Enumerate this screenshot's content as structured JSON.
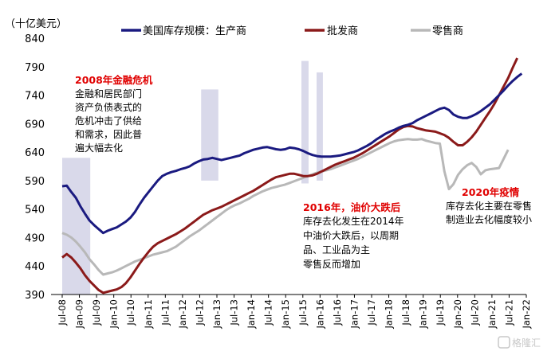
{
  "chart_data": {
    "type": "line",
    "unit_label": "（十亿美元）",
    "ylim": [
      390,
      840
    ],
    "yticks": [
      390,
      440,
      490,
      540,
      590,
      640,
      690,
      740,
      790,
      840
    ],
    "xticks": [
      "Jul-08",
      "Jan-09",
      "Jul-09",
      "Jan-10",
      "Jul-10",
      "Jan-11",
      "Jul-11",
      "Jan-12",
      "Jul-12",
      "Jan-13",
      "Jul-13",
      "Jan-14",
      "Jul-14",
      "Jan-15",
      "Jul-15",
      "Jan-16",
      "Jul-16",
      "Jan-17",
      "Jul-17",
      "Jan-18",
      "Jul-18",
      "Jan-19",
      "Jul-19",
      "Jan-20",
      "Jul-20",
      "Jan-21",
      "Jul-21",
      "Jan-22"
    ],
    "legend_position": "top",
    "series": [
      {
        "name": "美国库存规模：生产商",
        "color": "#1a1a80",
        "points": [
          [
            0,
            580
          ],
          [
            1,
            581
          ],
          [
            2,
            570
          ],
          [
            3,
            560
          ],
          [
            4,
            545
          ],
          [
            5,
            532
          ],
          [
            6,
            520
          ],
          [
            7,
            512
          ],
          [
            8,
            505
          ],
          [
            9,
            498
          ],
          [
            10,
            502
          ],
          [
            11,
            505
          ],
          [
            12,
            508
          ],
          [
            13,
            513
          ],
          [
            14,
            518
          ],
          [
            15,
            525
          ],
          [
            16,
            535
          ],
          [
            17,
            548
          ],
          [
            18,
            560
          ],
          [
            19,
            570
          ],
          [
            20,
            580
          ],
          [
            21,
            590
          ],
          [
            22,
            598
          ],
          [
            23,
            602
          ],
          [
            24,
            605
          ],
          [
            25,
            607
          ],
          [
            26,
            610
          ],
          [
            27,
            612
          ],
          [
            28,
            615
          ],
          [
            29,
            620
          ],
          [
            30,
            624
          ],
          [
            31,
            627
          ],
          [
            32,
            628
          ],
          [
            33,
            630
          ],
          [
            34,
            628
          ],
          [
            35,
            626
          ],
          [
            36,
            628
          ],
          [
            37,
            630
          ],
          [
            38,
            632
          ],
          [
            39,
            634
          ],
          [
            40,
            638
          ],
          [
            41,
            641
          ],
          [
            42,
            644
          ],
          [
            43,
            646
          ],
          [
            44,
            648
          ],
          [
            45,
            649
          ],
          [
            46,
            647
          ],
          [
            47,
            645
          ],
          [
            48,
            644
          ],
          [
            49,
            645
          ],
          [
            50,
            648
          ],
          [
            51,
            647
          ],
          [
            52,
            645
          ],
          [
            53,
            642
          ],
          [
            54,
            638
          ],
          [
            55,
            635
          ],
          [
            56,
            633
          ],
          [
            57,
            632
          ],
          [
            58,
            632
          ],
          [
            59,
            632
          ],
          [
            60,
            633
          ],
          [
            61,
            634
          ],
          [
            62,
            636
          ],
          [
            63,
            638
          ],
          [
            64,
            640
          ],
          [
            65,
            643
          ],
          [
            66,
            647
          ],
          [
            67,
            651
          ],
          [
            68,
            656
          ],
          [
            69,
            662
          ],
          [
            70,
            667
          ],
          [
            71,
            672
          ],
          [
            72,
            676
          ],
          [
            73,
            679
          ],
          [
            74,
            683
          ],
          [
            75,
            686
          ],
          [
            76,
            688
          ],
          [
            77,
            691
          ],
          [
            78,
            696
          ],
          [
            79,
            700
          ],
          [
            80,
            704
          ],
          [
            81,
            708
          ],
          [
            82,
            712
          ],
          [
            83,
            716
          ],
          [
            84,
            718
          ],
          [
            85,
            714
          ],
          [
            86,
            706
          ],
          [
            87,
            702
          ],
          [
            88,
            700
          ],
          [
            89,
            700
          ],
          [
            90,
            703
          ],
          [
            91,
            707
          ],
          [
            92,
            712
          ],
          [
            93,
            718
          ],
          [
            94,
            724
          ],
          [
            95,
            732
          ],
          [
            96,
            740
          ],
          [
            97,
            748
          ],
          [
            98,
            757
          ],
          [
            99,
            765
          ],
          [
            100,
            772
          ],
          [
            101,
            778
          ]
        ]
      },
      {
        "name": "批发商",
        "color": "#8b1a1a",
        "points": [
          [
            0,
            455
          ],
          [
            1,
            461
          ],
          [
            2,
            455
          ],
          [
            3,
            446
          ],
          [
            4,
            436
          ],
          [
            5,
            424
          ],
          [
            6,
            414
          ],
          [
            7,
            406
          ],
          [
            8,
            398
          ],
          [
            9,
            393
          ],
          [
            10,
            395
          ],
          [
            11,
            397
          ],
          [
            12,
            399
          ],
          [
            13,
            403
          ],
          [
            14,
            410
          ],
          [
            15,
            420
          ],
          [
            16,
            432
          ],
          [
            17,
            444
          ],
          [
            18,
            455
          ],
          [
            19,
            465
          ],
          [
            20,
            474
          ],
          [
            21,
            480
          ],
          [
            22,
            484
          ],
          [
            23,
            488
          ],
          [
            24,
            492
          ],
          [
            25,
            496
          ],
          [
            26,
            501
          ],
          [
            27,
            506
          ],
          [
            28,
            512
          ],
          [
            29,
            518
          ],
          [
            30,
            524
          ],
          [
            31,
            530
          ],
          [
            32,
            534
          ],
          [
            33,
            538
          ],
          [
            34,
            541
          ],
          [
            35,
            544
          ],
          [
            36,
            548
          ],
          [
            37,
            552
          ],
          [
            38,
            556
          ],
          [
            39,
            560
          ],
          [
            40,
            564
          ],
          [
            41,
            568
          ],
          [
            42,
            572
          ],
          [
            43,
            577
          ],
          [
            44,
            582
          ],
          [
            45,
            587
          ],
          [
            46,
            592
          ],
          [
            47,
            596
          ],
          [
            48,
            598
          ],
          [
            49,
            600
          ],
          [
            50,
            602
          ],
          [
            51,
            602
          ],
          [
            52,
            600
          ],
          [
            53,
            598
          ],
          [
            54,
            598
          ],
          [
            55,
            599
          ],
          [
            56,
            602
          ],
          [
            57,
            606
          ],
          [
            58,
            610
          ],
          [
            59,
            614
          ],
          [
            60,
            618
          ],
          [
            61,
            621
          ],
          [
            62,
            624
          ],
          [
            63,
            627
          ],
          [
            64,
            630
          ],
          [
            65,
            634
          ],
          [
            66,
            638
          ],
          [
            67,
            643
          ],
          [
            68,
            648
          ],
          [
            69,
            653
          ],
          [
            70,
            658
          ],
          [
            71,
            663
          ],
          [
            72,
            668
          ],
          [
            73,
            674
          ],
          [
            74,
            680
          ],
          [
            75,
            684
          ],
          [
            76,
            686
          ],
          [
            77,
            685
          ],
          [
            78,
            682
          ],
          [
            79,
            680
          ],
          [
            80,
            678
          ],
          [
            81,
            677
          ],
          [
            82,
            676
          ],
          [
            83,
            673
          ],
          [
            84,
            670
          ],
          [
            85,
            665
          ],
          [
            86,
            658
          ],
          [
            87,
            652
          ],
          [
            88,
            652
          ],
          [
            89,
            658
          ],
          [
            90,
            666
          ],
          [
            91,
            676
          ],
          [
            92,
            688
          ],
          [
            93,
            700
          ],
          [
            94,
            712
          ],
          [
            95,
            725
          ],
          [
            96,
            740
          ],
          [
            97,
            755
          ],
          [
            98,
            770
          ],
          [
            99,
            788
          ],
          [
            100,
            805
          ]
        ]
      },
      {
        "name": "零售商",
        "color": "#b8b8b8",
        "points": [
          [
            0,
            498
          ],
          [
            1,
            495
          ],
          [
            2,
            490
          ],
          [
            3,
            483
          ],
          [
            4,
            474
          ],
          [
            5,
            464
          ],
          [
            6,
            452
          ],
          [
            7,
            443
          ],
          [
            8,
            433
          ],
          [
            9,
            425
          ],
          [
            10,
            427
          ],
          [
            11,
            429
          ],
          [
            12,
            432
          ],
          [
            13,
            436
          ],
          [
            14,
            440
          ],
          [
            15,
            444
          ],
          [
            16,
            448
          ],
          [
            17,
            451
          ],
          [
            18,
            454
          ],
          [
            19,
            457
          ],
          [
            20,
            460
          ],
          [
            21,
            462
          ],
          [
            22,
            464
          ],
          [
            23,
            466
          ],
          [
            24,
            470
          ],
          [
            25,
            474
          ],
          [
            26,
            480
          ],
          [
            27,
            486
          ],
          [
            28,
            492
          ],
          [
            29,
            497
          ],
          [
            30,
            502
          ],
          [
            31,
            508
          ],
          [
            32,
            514
          ],
          [
            33,
            520
          ],
          [
            34,
            526
          ],
          [
            35,
            532
          ],
          [
            36,
            538
          ],
          [
            37,
            543
          ],
          [
            38,
            547
          ],
          [
            39,
            550
          ],
          [
            40,
            554
          ],
          [
            41,
            558
          ],
          [
            42,
            563
          ],
          [
            43,
            567
          ],
          [
            44,
            571
          ],
          [
            45,
            574
          ],
          [
            46,
            577
          ],
          [
            47,
            579
          ],
          [
            48,
            581
          ],
          [
            49,
            583
          ],
          [
            50,
            586
          ],
          [
            51,
            589
          ],
          [
            52,
            592
          ],
          [
            53,
            595
          ],
          [
            54,
            598
          ],
          [
            55,
            601
          ],
          [
            56,
            604
          ],
          [
            57,
            606
          ],
          [
            58,
            608
          ],
          [
            59,
            610
          ],
          [
            60,
            613
          ],
          [
            61,
            616
          ],
          [
            62,
            619
          ],
          [
            63,
            622
          ],
          [
            64,
            625
          ],
          [
            65,
            628
          ],
          [
            66,
            632
          ],
          [
            67,
            636
          ],
          [
            68,
            640
          ],
          [
            69,
            644
          ],
          [
            70,
            648
          ],
          [
            71,
            652
          ],
          [
            72,
            656
          ],
          [
            73,
            659
          ],
          [
            74,
            661
          ],
          [
            75,
            662
          ],
          [
            76,
            663
          ],
          [
            77,
            662
          ],
          [
            78,
            662
          ],
          [
            79,
            663
          ],
          [
            80,
            660
          ],
          [
            81,
            658
          ],
          [
            82,
            656
          ],
          [
            83,
            655
          ],
          [
            84,
            606
          ],
          [
            85,
            575
          ],
          [
            86,
            584
          ],
          [
            87,
            600
          ],
          [
            88,
            610
          ],
          [
            89,
            617
          ],
          [
            90,
            621
          ],
          [
            91,
            614
          ],
          [
            92,
            601
          ],
          [
            93,
            608
          ],
          [
            94,
            610
          ],
          [
            95,
            611
          ],
          [
            96,
            612
          ],
          [
            97,
            628
          ],
          [
            98,
            644
          ]
        ]
      }
    ],
    "shaded_regions": [
      {
        "from": 0,
        "to": 9.8
      },
      {
        "from": 48.5,
        "to": 54.5
      },
      {
        "from": 83.5,
        "to": 86
      },
      {
        "from": 88.8,
        "to": 91
      }
    ],
    "annotations": [
      {
        "title": "2008年金融危机",
        "lines": [
          "金融和居民部门",
          "资产负债表式的",
          "危机冲击了供给",
          "和需求，因此普",
          "遍大幅去化"
        ]
      },
      {
        "title": "2016年，油价大跌后",
        "lines": [
          "库存去化发生在2014年",
          "中油价大跌后，以周期",
          "品、工业品为主",
          "零售反而增加"
        ]
      },
      {
        "title": "2020年疫情",
        "lines": [
          "库存去化主要在零售",
          "制造业去化幅度较小"
        ]
      }
    ],
    "watermark": "格隆汇"
  }
}
